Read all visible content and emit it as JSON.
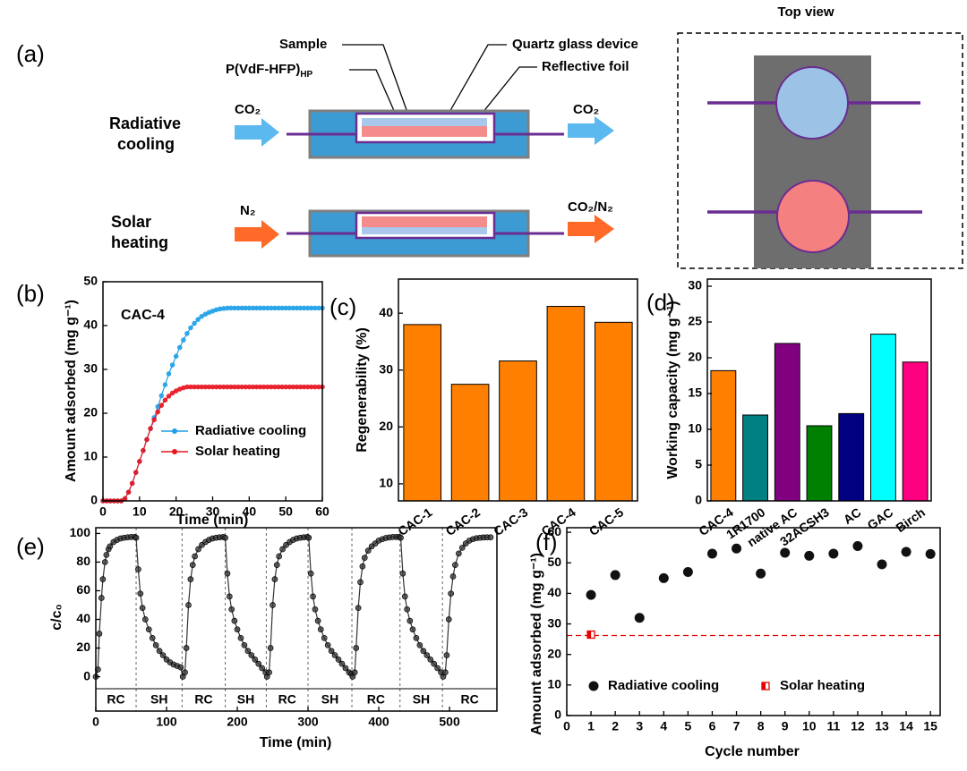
{
  "diagram": {
    "label": "(a)",
    "top_view": "Top view",
    "sample": "Sample",
    "polymer": "P(VdF-HFP)",
    "polymer_sub": "HP",
    "quartz": "Quartz glass device",
    "foil": "Reflective foil",
    "rc_line1": "Radiative",
    "rc_line2": "cooling",
    "sh_line1": "Solar",
    "sh_line2": "heating",
    "rc_in": "CO₂",
    "rc_out": "CO₂",
    "sh_in": "N₂",
    "sh_out": "CO₂/N₂"
  },
  "chart_data": [
    {
      "type": "line",
      "panel": "(b)",
      "annotation": "CAC-4",
      "xlabel": "Time (min)",
      "ylabel": "Amount adsorbed (mg g⁻¹)",
      "x": [
        0,
        1,
        2,
        3,
        4,
        5,
        6,
        7,
        8,
        9,
        10,
        11,
        12,
        13,
        14,
        15,
        16,
        17,
        18,
        19,
        20,
        21,
        22,
        23,
        24,
        25,
        26,
        27,
        28,
        29,
        30,
        31,
        32,
        33,
        34,
        35,
        36,
        37,
        38,
        39,
        40,
        41,
        42,
        43,
        44,
        45,
        46,
        47,
        48,
        49,
        50,
        51,
        52,
        53,
        54,
        55,
        56,
        57,
        58,
        59,
        60
      ],
      "series": [
        {
          "name": "Radiative cooling",
          "color": "#1e9fe6",
          "values": [
            0,
            0,
            0,
            0,
            0,
            0,
            0.5,
            2,
            4,
            6.5,
            9,
            11.5,
            14,
            16.5,
            19,
            21.5,
            24,
            26.5,
            29,
            31,
            33,
            35,
            36.7,
            38.2,
            39.5,
            40.5,
            41.4,
            42.1,
            42.6,
            43,
            43.3,
            43.6,
            43.8,
            43.9,
            44,
            44,
            44,
            44,
            44,
            44,
            44,
            44,
            44,
            44,
            44,
            44,
            44,
            44,
            44,
            44,
            44,
            44,
            44,
            44,
            44,
            44,
            44,
            44,
            44,
            44,
            44
          ]
        },
        {
          "name": "Solar heating",
          "color": "#e8141e",
          "values": [
            0,
            0,
            0,
            0,
            0,
            0,
            0.5,
            2,
            4,
            6.5,
            9,
            11.5,
            14,
            16.5,
            18.5,
            20.3,
            21.8,
            23,
            23.9,
            24.6,
            25.1,
            25.5,
            25.8,
            26,
            26,
            26,
            26,
            26,
            26,
            26,
            26,
            26,
            26,
            26,
            26,
            26,
            26,
            26,
            26,
            26,
            26,
            26,
            26,
            26,
            26,
            26,
            26,
            26,
            26,
            26,
            26,
            26,
            26,
            26,
            26,
            26,
            26,
            26,
            26,
            26,
            26
          ]
        }
      ],
      "xlim": [
        0,
        60
      ],
      "xticks": [
        0,
        10,
        20,
        30,
        40,
        50,
        60
      ],
      "ylim": [
        0,
        50
      ],
      "yticks": [
        0,
        10,
        20,
        30,
        40,
        50
      ],
      "legend": "lower right"
    },
    {
      "type": "bar",
      "panel": "(c)",
      "ylabel": "Regenerability (%)",
      "categories": [
        "CAC-1",
        "CAC-2",
        "CAC-3",
        "CAC-4",
        "CAC-5"
      ],
      "values": [
        38,
        27.5,
        31.6,
        41.2,
        38.4
      ],
      "color": "#ff8000",
      "ylim": [
        7,
        46
      ],
      "yticks": [
        10,
        20,
        30,
        40
      ]
    },
    {
      "type": "bar",
      "panel": "(d)",
      "ylabel": "Working capacity (mg g⁻¹)",
      "categories": [
        "CAC-4",
        "1R1700",
        "native AC",
        "32ACSH3",
        "AC",
        "GAC",
        "Birch"
      ],
      "values": [
        18.2,
        12,
        22,
        10.5,
        12.2,
        23.3,
        19.4
      ],
      "colors": [
        "#ff8000",
        "#008080",
        "#800080",
        "#008000",
        "#000080",
        "#00ffff",
        "#ff0080"
      ],
      "ylim": [
        0,
        31
      ],
      "yticks": [
        0,
        5,
        10,
        15,
        20,
        25,
        30
      ]
    },
    {
      "type": "line",
      "panel": "(e)",
      "xlabel": "Time (min)",
      "ylabel": "c/c₀",
      "color": "#333333",
      "x": [
        0,
        3,
        5,
        8,
        10,
        13,
        15,
        18,
        20,
        25,
        30,
        35,
        40,
        45,
        50,
        55,
        57,
        60,
        63,
        66,
        70,
        75,
        80,
        85,
        90,
        95,
        100,
        105,
        110,
        115,
        120,
        123,
        126,
        128,
        131,
        134,
        137,
        140,
        145,
        150,
        155,
        160,
        165,
        170,
        175,
        180,
        183,
        186,
        189,
        192,
        196,
        200,
        205,
        210,
        215,
        220,
        225,
        230,
        235,
        240,
        242,
        245,
        247,
        250,
        253,
        256,
        259,
        264,
        269,
        274,
        279,
        284,
        289,
        294,
        299,
        301,
        304,
        307,
        310,
        314,
        318,
        323,
        328,
        333,
        338,
        343,
        348,
        353,
        358,
        361,
        363,
        366,
        368,
        371,
        374,
        377,
        380,
        385,
        390,
        395,
        400,
        405,
        410,
        415,
        420,
        425,
        429,
        431,
        434,
        437,
        440,
        444,
        448,
        453,
        458,
        463,
        468,
        473,
        478,
        483,
        488,
        491,
        494,
        496,
        499,
        502,
        505,
        508,
        513,
        518,
        523,
        528,
        533,
        538,
        543,
        548,
        553,
        558
      ],
      "values": [
        0,
        5,
        30,
        55,
        68,
        80,
        85,
        89,
        91,
        94,
        95.5,
        96.5,
        97,
        97.3,
        97.5,
        97.5,
        97,
        75,
        58,
        48,
        40,
        33,
        27,
        22,
        18,
        15,
        12,
        10,
        8.5,
        7.5,
        6.5,
        0,
        3,
        20,
        50,
        68,
        78,
        84,
        89,
        92,
        94,
        95.5,
        96.5,
        97,
        97.3,
        97.5,
        97,
        72,
        56,
        47,
        39,
        33,
        27,
        22,
        18,
        15,
        12,
        9,
        6,
        3,
        0,
        3,
        20,
        50,
        68,
        78,
        84,
        89,
        92,
        94,
        95.5,
        96.5,
        97,
        97.3,
        97.5,
        97,
        72,
        56,
        47,
        39,
        33,
        27,
        22,
        18,
        15,
        12,
        9,
        6,
        3,
        2,
        0,
        3,
        20,
        48,
        66,
        77,
        83,
        88,
        91,
        93,
        95,
        96,
        96.8,
        97.2,
        97.5,
        97.5,
        97.5,
        97,
        72,
        56,
        47,
        39,
        33,
        27,
        22,
        18,
        15,
        12,
        9,
        6,
        3,
        0,
        3,
        15,
        40,
        58,
        70,
        78,
        86,
        90,
        93,
        95,
        96,
        96.7,
        97,
        97.2,
        97.3,
        97.3
      ],
      "boundaries": [
        57,
        122,
        183,
        241,
        300,
        362,
        430,
        490
      ],
      "phase_labels": [
        "RC",
        "SH",
        "RC",
        "SH",
        "RC",
        "SH",
        "RC",
        "SH",
        "RC"
      ],
      "phase_colors": {
        "RC": "#1414e6",
        "SH": "#e61414"
      },
      "xlim": [
        0,
        567
      ],
      "xticks": [
        0,
        100,
        200,
        300,
        400,
        500
      ],
      "ylim": [
        -24,
        104
      ],
      "yticks": [
        0,
        20,
        40,
        60,
        80,
        100
      ]
    },
    {
      "type": "scatter",
      "panel": "(f)",
      "xlabel": "Cycle number",
      "ylabel": "Amount adsorbed (mg g⁻¹)",
      "series": [
        {
          "name": "Radiative cooling",
          "color": "#111111",
          "marker": "circle",
          "x": [
            1,
            2,
            3,
            4,
            5,
            6,
            7,
            8,
            9,
            10,
            11,
            12,
            13,
            14,
            15
          ],
          "values": [
            39.5,
            46,
            32,
            45,
            47,
            53,
            54.7,
            46.5,
            53.3,
            52.3,
            53,
            55.5,
            49.5,
            53.6,
            52.9
          ]
        },
        {
          "name": "Solar heating",
          "color": "#e60000",
          "marker": "square-half",
          "x": [
            1
          ],
          "values": [
            26.5
          ]
        }
      ],
      "hline": 26.2,
      "xlim": [
        0,
        15.4
      ],
      "xticks": [
        0,
        1,
        2,
        3,
        4,
        5,
        6,
        7,
        8,
        9,
        10,
        11,
        12,
        13,
        14,
        15
      ],
      "ylim": [
        0,
        61.5
      ],
      "yticks": [
        0,
        10,
        20,
        30,
        40,
        50,
        60
      ],
      "legend": "lower left"
    }
  ]
}
